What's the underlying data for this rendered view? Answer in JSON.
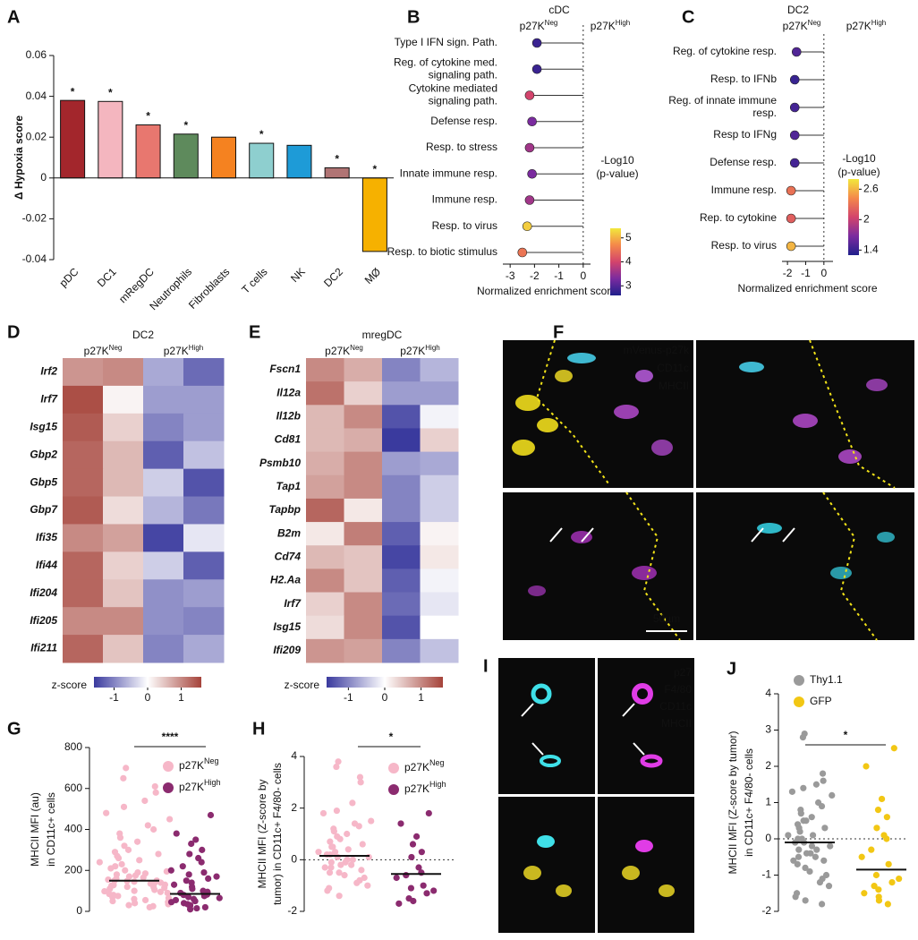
{
  "chart_data": [
    {
      "panel": "A",
      "type": "bar",
      "ylabel": "Δ Hypoxia score",
      "categories": [
        "pDC",
        "DC1",
        "mRegDC",
        "Neutrophils",
        "Fibroblasts",
        "T cells",
        "NK",
        "DC2",
        "MØ"
      ],
      "values": [
        0.038,
        0.0375,
        0.026,
        0.0215,
        0.02,
        0.017,
        0.016,
        0.005,
        -0.036
      ],
      "colors": [
        "#a3262c",
        "#f4b6bf",
        "#e8776f",
        "#5e8a5c",
        "#f58220",
        "#8ecfcf",
        "#1e9bd7",
        "#b07474",
        "#f6b100"
      ],
      "annotations": [
        "*",
        "*",
        "*",
        "*",
        null,
        "*",
        null,
        "*",
        "*"
      ],
      "ylim": [
        -0.04,
        0.06
      ],
      "yticks": [
        -0.04,
        -0.02,
        0,
        0.02,
        0.04,
        0.06
      ]
    },
    {
      "panel": "B",
      "type": "lollipop",
      "title": "cDC",
      "group_labels": [
        {
          "text": "p27K",
          "sup": "Neg"
        },
        {
          "text": "p27K",
          "sup": "High"
        }
      ],
      "categories": [
        [
          "Type I IFN sign. Path."
        ],
        [
          "Reg. of cytokine med.",
          "signaling path."
        ],
        [
          "Cytokine mediated",
          "signaling path."
        ],
        [
          "Defense resp."
        ],
        [
          "Resp. to stress"
        ],
        [
          "Innate immune resp."
        ],
        [
          "Immune resp."
        ],
        [
          "Resp. to virus"
        ],
        [
          "Resp. to biotic stimulus"
        ]
      ],
      "values": [
        -1.9,
        -1.9,
        -2.2,
        -2.1,
        -2.2,
        -2.1,
        -2.2,
        -2.3,
        -2.5
      ],
      "pvalues": [
        2.8,
        2.8,
        4.0,
        3.3,
        3.6,
        3.3,
        3.6,
        5.2,
        4.5
      ],
      "xlim": [
        -3.3,
        0.3
      ],
      "xticks": [
        -3,
        -2,
        -1,
        0
      ],
      "xlabel": "Normalized enrichment score",
      "colorbar": {
        "label": [
          "-Log10",
          "(p-value)"
        ],
        "lim": [
          2.6,
          5.4
        ],
        "ticks": [
          3,
          4,
          5
        ]
      },
      "colormap": [
        "#20208c",
        "#7b2b9f",
        "#d3446c",
        "#f4884a",
        "#f2e83c"
      ]
    },
    {
      "panel": "C",
      "type": "lollipop",
      "title": "DC2",
      "group_labels": [
        {
          "text": "p27K",
          "sup": "Neg"
        },
        {
          "text": "p27K",
          "sup": "High"
        }
      ],
      "categories": [
        [
          "Reg. of cytokine resp."
        ],
        [
          "Resp. to IFNb"
        ],
        [
          "Reg. of innate immune",
          "resp."
        ],
        [
          "Resp to IFNg"
        ],
        [
          "Defense resp."
        ],
        [
          "Immune resp."
        ],
        [
          "Rep. to cytokine"
        ],
        [
          "Resp. to virus"
        ]
      ],
      "values": [
        -1.5,
        -1.6,
        -1.6,
        -1.6,
        -1.6,
        -1.8,
        -1.8,
        -1.8
      ],
      "pvalues": [
        1.5,
        1.4,
        1.45,
        1.5,
        1.45,
        2.3,
        2.2,
        2.6
      ],
      "xlim": [
        -2.3,
        0.5
      ],
      "xticks": [
        -2,
        -1,
        0
      ],
      "xlabel": "Normalized enrichment score",
      "colorbar": {
        "label": [
          "-Log10",
          "(p-value)"
        ],
        "lim": [
          1.3,
          2.8
        ],
        "ticks": [
          1.4,
          2,
          2.6
        ]
      },
      "colormap": [
        "#20208c",
        "#7b2b9f",
        "#d3446c",
        "#f4884a",
        "#f2e83c"
      ]
    },
    {
      "panel": "D",
      "type": "heatmap",
      "title": "DC2",
      "group_labels": [
        {
          "text": "p27K",
          "sup": "Neg"
        },
        {
          "text": "p27K",
          "sup": "High"
        }
      ],
      "rows": [
        "Irf2",
        "Irf7",
        "Isg15",
        "Gbp2",
        "Gbp5",
        "Gbp7",
        "Ifi35",
        "Ifi44",
        "Ifi204",
        "Ifi205",
        "Ifi211"
      ],
      "values": [
        [
          0.9,
          1.0,
          -0.7,
          -1.2
        ],
        [
          1.5,
          0.1,
          -0.8,
          -0.8
        ],
        [
          1.4,
          0.4,
          -1.0,
          -0.8
        ],
        [
          1.3,
          0.6,
          -1.3,
          -0.5
        ],
        [
          1.3,
          0.6,
          -0.4,
          -1.4
        ],
        [
          1.4,
          0.3,
          -0.6,
          -1.1
        ],
        [
          1.0,
          0.8,
          -1.5,
          -0.2
        ],
        [
          1.3,
          0.4,
          -0.4,
          -1.3
        ],
        [
          1.3,
          0.5,
          -0.9,
          -0.8
        ],
        [
          1.0,
          1.0,
          -0.9,
          -1.0
        ],
        [
          1.3,
          0.5,
          -1.0,
          -0.7
        ]
      ],
      "colorbar": {
        "label": "z-score",
        "lim": [
          -1.6,
          1.6
        ],
        "ticks": [
          -1,
          0,
          1
        ]
      },
      "colormap": [
        "#3a3a9e",
        "#ffffff",
        "#a5433a"
      ]
    },
    {
      "panel": "E",
      "type": "heatmap",
      "title": "mregDC",
      "group_labels": [
        {
          "text": "p27K",
          "sup": "Neg"
        },
        {
          "text": "p27K",
          "sup": "High"
        }
      ],
      "rows": [
        "Fscn1",
        "Il12a",
        "Il12b",
        "Cd81",
        "Psmb10",
        "Tap1",
        "Tapbp",
        "B2m",
        "Cd74",
        "H2.Aa",
        "Irf7",
        "Isg15",
        "Ifi209"
      ],
      "values": [
        [
          1.0,
          0.7,
          -1.0,
          -0.6
        ],
        [
          1.2,
          0.4,
          -0.8,
          -0.8
        ],
        [
          0.6,
          1.0,
          -1.4,
          -0.1
        ],
        [
          0.6,
          0.7,
          -1.6,
          0.4
        ],
        [
          0.7,
          1.0,
          -0.8,
          -0.7
        ],
        [
          0.8,
          1.0,
          -1.0,
          -0.4
        ],
        [
          1.3,
          0.2,
          -1.0,
          -0.4
        ],
        [
          0.2,
          1.1,
          -1.3,
          0.1
        ],
        [
          0.6,
          0.5,
          -1.5,
          0.2
        ],
        [
          1.0,
          0.5,
          -1.3,
          -0.1
        ],
        [
          0.4,
          1.0,
          -1.2,
          -0.2
        ],
        [
          0.3,
          1.0,
          -1.4,
          0.0
        ],
        [
          0.9,
          0.8,
          -1.0,
          -0.5
        ]
      ],
      "colorbar": {
        "label": "z-score",
        "lim": [
          -1.6,
          1.6
        ],
        "ticks": [
          -1,
          0,
          1
        ]
      },
      "colormap": [
        "#3a3a9e",
        "#ffffff",
        "#a5433a"
      ]
    },
    {
      "panel": "G",
      "type": "dot",
      "ylabel": [
        "MHCII MFI (au)",
        "in CD11c+ cells"
      ],
      "significance": "****",
      "ylim": [
        0,
        800
      ],
      "yticks": [
        0,
        200,
        400,
        600,
        800
      ],
      "zero_line": false,
      "series": [
        {
          "name": "p27K",
          "sup": "Neg",
          "color": "#f6b7c8",
          "center": 150,
          "values": [
            700,
            650,
            610,
            580,
            540,
            510,
            480,
            450,
            420,
            400,
            380,
            360,
            340,
            320,
            300,
            290,
            280,
            270,
            260,
            250,
            240,
            230,
            220,
            210,
            200,
            195,
            190,
            185,
            180,
            175,
            170,
            165,
            160,
            155,
            150,
            150,
            148,
            145,
            140,
            138,
            135,
            130,
            128,
            125,
            120,
            118,
            115,
            110,
            105,
            100,
            98,
            95,
            90,
            85,
            80,
            75,
            70,
            65,
            60,
            55,
            50,
            45,
            40,
            35,
            30,
            25,
            20
          ]
        },
        {
          "name": "p27K",
          "sup": "High",
          "color": "#8b2b6f",
          "center": 85,
          "values": [
            470,
            380,
            350,
            330,
            300,
            280,
            260,
            240,
            220,
            200,
            190,
            180,
            170,
            160,
            150,
            140,
            130,
            120,
            110,
            100,
            95,
            90,
            88,
            85,
            82,
            80,
            75,
            70,
            65,
            60,
            55,
            50,
            45,
            40,
            35,
            30,
            25,
            20,
            15,
            10
          ]
        }
      ]
    },
    {
      "panel": "H",
      "type": "dot",
      "ylabel": [
        "MHCII MFI (Z-score by",
        "tumor) in CD11c+ F4/80- cells"
      ],
      "significance": "*",
      "ylim": [
        -2,
        4
      ],
      "yticks": [
        -2,
        0,
        2,
        4
      ],
      "zero_line": true,
      "series": [
        {
          "name": "p27K",
          "sup": "Neg",
          "color": "#f6b7c8",
          "center": 0.15,
          "values": [
            3.8,
            3.6,
            3.2,
            3.0,
            2.2,
            1.9,
            1.8,
            1.5,
            1.4,
            1.3,
            1.2,
            1.1,
            1.0,
            0.9,
            0.8,
            0.7,
            0.6,
            0.5,
            0.5,
            0.4,
            0.3,
            0.3,
            0.2,
            0.2,
            0.1,
            0.1,
            0.0,
            0.0,
            -0.1,
            -0.1,
            -0.2,
            -0.2,
            -0.3,
            -0.3,
            -0.4,
            -0.5,
            -0.5,
            -0.6,
            -0.7,
            -0.8,
            -0.9,
            -1.0,
            -1.1,
            -1.2,
            -1.4
          ]
        },
        {
          "name": "p27K",
          "sup": "High",
          "color": "#8b2b6f",
          "center": -0.55,
          "values": [
            1.8,
            1.4,
            0.9,
            0.6,
            0.3,
            0.1,
            -0.3,
            -0.5,
            -0.6,
            -0.7,
            -1.0,
            -1.1,
            -1.2,
            -1.3,
            -1.5,
            -1.6,
            -1.7
          ]
        }
      ]
    },
    {
      "panel": "J",
      "type": "dot",
      "ylabel": [
        "MHCII MFI (Z-score by tumor)",
        "in CD11c+ F4/80- cells"
      ],
      "significance": "*",
      "ylim": [
        -2,
        4
      ],
      "yticks": [
        -2,
        -1,
        0,
        1,
        2,
        3,
        4
      ],
      "zero_line": true,
      "series": [
        {
          "name": "Thy1.1",
          "color": "#9a9a9a",
          "center": -0.1,
          "values": [
            2.9,
            2.8,
            1.8,
            1.6,
            1.5,
            1.4,
            1.3,
            1.2,
            1.0,
            0.9,
            0.8,
            0.7,
            0.6,
            0.5,
            0.5,
            0.4,
            0.3,
            0.3,
            0.2,
            0.1,
            0.1,
            0.0,
            0.0,
            -0.1,
            -0.1,
            -0.2,
            -0.2,
            -0.3,
            -0.3,
            -0.4,
            -0.4,
            -0.5,
            -0.5,
            -0.6,
            -0.6,
            -0.7,
            -0.8,
            -0.9,
            -1.0,
            -1.1,
            -1.2,
            -1.3,
            -1.5,
            -1.6,
            -1.7,
            -1.8
          ]
        },
        {
          "name": "GFP",
          "color": "#f2c714",
          "center": -0.85,
          "values": [
            2.5,
            2.0,
            1.1,
            0.8,
            0.6,
            0.3,
            0.1,
            0.0,
            -0.3,
            -0.5,
            -0.7,
            -1.0,
            -1.1,
            -1.2,
            -1.3,
            -1.4,
            -1.5,
            -1.6,
            -1.7,
            -1.8
          ]
        }
      ]
    }
  ],
  "images": [
    {
      "panel": "F",
      "channels": [
        {
          "text": "mVenus-p27k",
          "color": "#f2e318"
        },
        {
          "text": "CD11c",
          "color": "#3fe0e8"
        },
        {
          "text": "MHCII",
          "color": "#e03ce6"
        }
      ],
      "scale_bar": "50µm"
    },
    {
      "panel": "I",
      "channels": [
        {
          "text": "p27",
          "color": "#f2e318"
        },
        {
          "text": "F4/80",
          "color": "#ffffff"
        },
        {
          "text": "CD11c",
          "color": "#3fe0e8"
        },
        {
          "text": "MHCII",
          "color": "#e03ce6"
        }
      ]
    }
  ]
}
